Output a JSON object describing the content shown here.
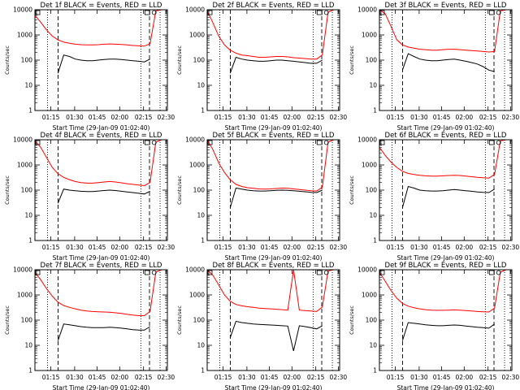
{
  "chart_data": [
    {
      "type": "line",
      "title": "Det 1f BLACK = Events, RED = LLD",
      "xlabel": "Start Time (29-Jan-09 01:02:40)",
      "ylabel": "Counts/sec",
      "y_scale": "log",
      "ylim": [
        1,
        10000
      ],
      "y_ticks": [
        "1",
        "10",
        "100",
        "1000",
        "10000"
      ],
      "x_ticks": [
        "01:15",
        "01:30",
        "01:45",
        "02:00",
        "02:15",
        "02:30"
      ],
      "series": [
        {
          "color": "#ff0000",
          "values": [
            6000,
            3200,
            1600,
            900,
            640,
            520,
            470,
            430,
            410,
            400,
            400,
            410,
            430,
            440,
            430,
            420,
            400,
            380,
            370,
            360,
            450,
            9000,
            10000,
            10000
          ]
        },
        {
          "color": "#000000",
          "values": [
            null,
            null,
            null,
            null,
            30,
            160,
            140,
            110,
            100,
            95,
            95,
            100,
            105,
            110,
            110,
            105,
            100,
            95,
            90,
            85,
            110,
            null,
            null,
            null
          ]
        }
      ]
    },
    {
      "type": "line",
      "title": "Det 2f BLACK = Events, RED = LLD",
      "xlabel": "Start Time (29-Jan-09 01:02:40)",
      "ylabel": "Counts/sec",
      "y_scale": "log",
      "ylim": [
        1,
        10000
      ],
      "y_ticks": [
        "1",
        "10",
        "100",
        "1000",
        "10000"
      ],
      "x_ticks": [
        "01:15",
        "01:30",
        "01:45",
        "02:00",
        "02:15",
        "02:30"
      ],
      "series": [
        {
          "color": "#ff0000",
          "values": [
            9000,
            3000,
            900,
            400,
            250,
            190,
            160,
            150,
            140,
            130,
            130,
            135,
            140,
            140,
            135,
            125,
            120,
            115,
            110,
            110,
            160,
            8000,
            10000,
            10000
          ]
        },
        {
          "color": "#000000",
          "values": [
            null,
            null,
            null,
            null,
            30,
            130,
            110,
            100,
            95,
            90,
            90,
            95,
            100,
            100,
            95,
            90,
            85,
            80,
            75,
            75,
            100,
            null,
            null,
            null
          ]
        }
      ]
    },
    {
      "type": "line",
      "title": "Det 3f BLACK = Events, RED = LLD",
      "xlabel": "Start Time (29-Jan-09 01:02:40)",
      "ylabel": "Counts/sec",
      "y_scale": "log",
      "ylim": [
        1,
        10000
      ],
      "y_ticks": [
        "1",
        "10",
        "100",
        "1000",
        "10000"
      ],
      "x_ticks": [
        "01:15",
        "01:30",
        "01:45",
        "02:00",
        "02:15",
        "02:30"
      ],
      "series": [
        {
          "color": "#ff0000",
          "values": [
            10000,
            7000,
            2200,
            650,
            400,
            330,
            300,
            270,
            260,
            250,
            250,
            260,
            270,
            270,
            260,
            250,
            240,
            230,
            220,
            210,
            220,
            9000,
            10000,
            10000
          ]
        },
        {
          "color": "#000000",
          "values": [
            null,
            null,
            null,
            null,
            40,
            180,
            140,
            110,
            100,
            95,
            95,
            100,
            105,
            110,
            100,
            90,
            80,
            70,
            55,
            40,
            35,
            null,
            null,
            null
          ]
        }
      ]
    },
    {
      "type": "line",
      "title": "Det 4f BLACK = Events, RED = LLD",
      "xlabel": "Start Time (29-Jan-09 01:02:40)",
      "ylabel": "Counts/sec",
      "y_scale": "log",
      "ylim": [
        1,
        10000
      ],
      "y_ticks": [
        "1",
        "10",
        "100",
        "1000",
        "10000"
      ],
      "x_ticks": [
        "01:15",
        "01:30",
        "01:45",
        "02:00",
        "02:15",
        "02:30"
      ],
      "series": [
        {
          "color": "#ff0000",
          "values": [
            9000,
            5000,
            2000,
            800,
            450,
            320,
            260,
            220,
            200,
            190,
            190,
            200,
            210,
            220,
            210,
            195,
            180,
            170,
            160,
            150,
            200,
            8000,
            10000,
            10000
          ]
        },
        {
          "color": "#000000",
          "values": [
            null,
            null,
            null,
            null,
            30,
            110,
            100,
            95,
            90,
            88,
            88,
            92,
            96,
            100,
            96,
            90,
            85,
            80,
            75,
            70,
            90,
            null,
            null,
            null
          ]
        }
      ]
    },
    {
      "type": "line",
      "title": "Det 5f BLACK = Events, RED = LLD",
      "xlabel": "Start Time (29-Jan-09 01:02:40)",
      "ylabel": "Counts/sec",
      "y_scale": "log",
      "ylim": [
        1,
        10000
      ],
      "y_ticks": [
        "1",
        "10",
        "100",
        "1000",
        "10000"
      ],
      "x_ticks": [
        "01:15",
        "01:30",
        "01:45",
        "02:00",
        "02:15",
        "02:30"
      ],
      "series": [
        {
          "color": "#ff0000",
          "values": [
            10000,
            4000,
            1200,
            500,
            260,
            170,
            140,
            125,
            118,
            112,
            110,
            112,
            116,
            120,
            118,
            112,
            105,
            100,
            95,
            92,
            130,
            8000,
            10000,
            10000
          ]
        },
        {
          "color": "#000000",
          "values": [
            null,
            null,
            null,
            null,
            20,
            120,
            110,
            100,
            95,
            92,
            92,
            95,
            98,
            100,
            98,
            94,
            90,
            86,
            82,
            80,
            100,
            null,
            null,
            null
          ]
        }
      ]
    },
    {
      "type": "line",
      "title": "Det 6f BLACK = Events, RED = LLD",
      "xlabel": "Start Time (29-Jan-09 01:02:40)",
      "ylabel": "Counts/sec",
      "y_scale": "log",
      "ylim": [
        1,
        10000
      ],
      "y_ticks": [
        "1",
        "10",
        "100",
        "1000",
        "10000"
      ],
      "x_ticks": [
        "01:15",
        "01:30",
        "01:45",
        "02:00",
        "02:15",
        "02:30"
      ],
      "series": [
        {
          "color": "#ff0000",
          "values": [
            5000,
            2400,
            1300,
            800,
            560,
            460,
            420,
            390,
            370,
            360,
            360,
            370,
            380,
            390,
            380,
            360,
            340,
            320,
            310,
            300,
            420,
            9000,
            10000,
            10000
          ]
        },
        {
          "color": "#000000",
          "values": [
            null,
            null,
            null,
            null,
            20,
            140,
            120,
            100,
            95,
            92,
            92,
            95,
            100,
            105,
            100,
            95,
            90,
            85,
            82,
            80,
            110,
            null,
            null,
            null
          ]
        }
      ]
    },
    {
      "type": "line",
      "title": "Det 7f BLACK = Events, RED = LLD",
      "xlabel": "Start Time (29-Jan-09 01:02:40)",
      "ylabel": "Counts/sec",
      "y_scale": "log",
      "ylim": [
        1,
        10000
      ],
      "y_ticks": [
        "1",
        "10",
        "100",
        "1000",
        "10000"
      ],
      "x_ticks": [
        "01:15",
        "01:30",
        "01:45",
        "02:00",
        "02:15",
        "02:30"
      ],
      "series": [
        {
          "color": "#ff0000",
          "values": [
            8000,
            4000,
            1800,
            900,
            520,
            380,
            320,
            280,
            250,
            230,
            220,
            215,
            210,
            205,
            195,
            185,
            170,
            160,
            150,
            150,
            220,
            8000,
            10000,
            10000
          ]
        },
        {
          "color": "#000000",
          "values": [
            null,
            null,
            null,
            null,
            15,
            70,
            65,
            60,
            55,
            52,
            50,
            50,
            50,
            52,
            50,
            48,
            45,
            42,
            40,
            40,
            55,
            null,
            null,
            null
          ]
        }
      ]
    },
    {
      "type": "line",
      "title": "Det 8f BLACK = Events, RED = LLD",
      "xlabel": "Start Time (29-Jan-09 01:02:40)",
      "ylabel": "Counts/sec",
      "y_scale": "log",
      "ylim": [
        1,
        10000
      ],
      "y_ticks": [
        "1",
        "10",
        "100",
        "1000",
        "10000"
      ],
      "x_ticks": [
        "01:15",
        "01:30",
        "01:45",
        "02:00",
        "02:15",
        "02:30"
      ],
      "series": [
        {
          "color": "#ff0000",
          "values": [
            10000,
            6000,
            2500,
            1000,
            560,
            420,
            370,
            340,
            320,
            300,
            290,
            280,
            270,
            260,
            250,
            10000,
            250,
            240,
            230,
            220,
            330,
            9000,
            10000,
            10000
          ]
        },
        {
          "color": "#000000",
          "values": [
            null,
            null,
            null,
            null,
            20,
            90,
            80,
            75,
            70,
            68,
            66,
            64,
            62,
            60,
            58,
            6,
            60,
            55,
            50,
            45,
            60,
            null,
            null,
            null
          ]
        }
      ]
    },
    {
      "type": "line",
      "title": "Det 9f BLACK = Events, RED = LLD",
      "xlabel": "Start Time (29-Jan-09 01:02:40)",
      "ylabel": "Counts/sec",
      "y_scale": "log",
      "ylim": [
        1,
        10000
      ],
      "y_ticks": [
        "1",
        "10",
        "100",
        "1000",
        "10000"
      ],
      "x_ticks": [
        "01:15",
        "01:30",
        "01:45",
        "02:00",
        "02:15",
        "02:30"
      ],
      "series": [
        {
          "color": "#ff0000",
          "values": [
            8000,
            3500,
            1500,
            750,
            460,
            360,
            310,
            280,
            260,
            250,
            245,
            245,
            250,
            255,
            250,
            240,
            230,
            220,
            215,
            210,
            300,
            8000,
            10000,
            10000
          ]
        },
        {
          "color": "#000000",
          "values": [
            null,
            null,
            null,
            null,
            15,
            80,
            75,
            70,
            65,
            62,
            60,
            60,
            62,
            64,
            62,
            58,
            55,
            52,
            50,
            48,
            70,
            null,
            null,
            null
          ]
        }
      ]
    }
  ]
}
